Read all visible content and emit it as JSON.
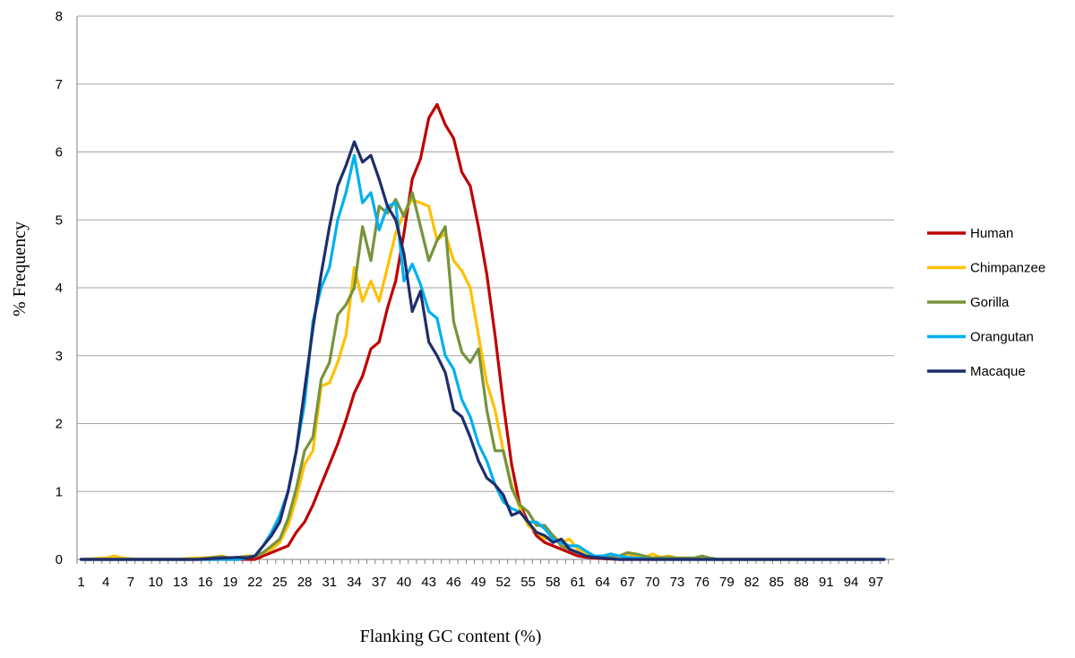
{
  "chart_data": {
    "type": "line",
    "title": "",
    "xlabel": "Flanking GC content (%)",
    "ylabel": "% Frequency",
    "xlim": [
      1,
      99
    ],
    "ylim": [
      0,
      8
    ],
    "yticks": [
      0,
      1,
      2,
      3,
      4,
      5,
      6,
      7,
      8
    ],
    "xtick_labels": [
      1,
      4,
      7,
      10,
      13,
      16,
      19,
      22,
      25,
      28,
      31,
      34,
      37,
      40,
      43,
      46,
      49,
      52,
      55,
      58,
      61,
      64,
      67,
      70,
      73,
      76,
      79,
      82,
      85,
      88,
      91,
      94,
      97
    ],
    "grid": "horizontal",
    "legend_position": "right",
    "series": [
      {
        "name": "Human",
        "color": "#c00000",
        "points": [
          [
            1,
            0
          ],
          [
            5,
            0
          ],
          [
            10,
            0
          ],
          [
            15,
            0
          ],
          [
            20,
            0
          ],
          [
            22,
            0
          ],
          [
            23,
            0.05
          ],
          [
            24,
            0.1
          ],
          [
            25,
            0.15
          ],
          [
            26,
            0.2
          ],
          [
            27,
            0.4
          ],
          [
            28,
            0.55
          ],
          [
            29,
            0.8
          ],
          [
            30,
            1.1
          ],
          [
            31,
            1.4
          ],
          [
            32,
            1.7
          ],
          [
            33,
            2.05
          ],
          [
            34,
            2.45
          ],
          [
            35,
            2.7
          ],
          [
            36,
            3.1
          ],
          [
            37,
            3.2
          ],
          [
            38,
            3.7
          ],
          [
            39,
            4.1
          ],
          [
            40,
            4.8
          ],
          [
            41,
            5.6
          ],
          [
            42,
            5.9
          ],
          [
            43,
            6.5
          ],
          [
            44,
            6.7
          ],
          [
            45,
            6.4
          ],
          [
            46,
            6.2
          ],
          [
            47,
            5.7
          ],
          [
            48,
            5.5
          ],
          [
            49,
            4.9
          ],
          [
            50,
            4.2
          ],
          [
            51,
            3.3
          ],
          [
            52,
            2.3
          ],
          [
            53,
            1.4
          ],
          [
            54,
            0.8
          ],
          [
            55,
            0.55
          ],
          [
            56,
            0.35
          ],
          [
            57,
            0.25
          ],
          [
            58,
            0.2
          ],
          [
            59,
            0.15
          ],
          [
            60,
            0.1
          ],
          [
            61,
            0.05
          ],
          [
            62,
            0.03
          ],
          [
            63,
            0.02
          ],
          [
            64,
            0.01
          ],
          [
            66,
            0
          ],
          [
            70,
            0
          ],
          [
            80,
            0
          ],
          [
            90,
            0
          ],
          [
            98,
            0
          ]
        ]
      },
      {
        "name": "Chimpanzee",
        "color": "#ffc000",
        "points": [
          [
            1,
            0
          ],
          [
            4,
            0.02
          ],
          [
            5,
            0.05
          ],
          [
            6,
            0.02
          ],
          [
            8,
            0
          ],
          [
            12,
            0
          ],
          [
            15,
            0.02
          ],
          [
            17,
            0.03
          ],
          [
            18,
            0.05
          ],
          [
            19,
            0.02
          ],
          [
            20,
            0.03
          ],
          [
            21,
            0.05
          ],
          [
            22,
            0.05
          ],
          [
            23,
            0.1
          ],
          [
            24,
            0.15
          ],
          [
            25,
            0.25
          ],
          [
            26,
            0.5
          ],
          [
            27,
            0.9
          ],
          [
            28,
            1.4
          ],
          [
            29,
            1.6
          ],
          [
            30,
            2.55
          ],
          [
            31,
            2.6
          ],
          [
            32,
            2.9
          ],
          [
            33,
            3.3
          ],
          [
            34,
            4.3
          ],
          [
            35,
            3.8
          ],
          [
            36,
            4.1
          ],
          [
            37,
            3.8
          ],
          [
            38,
            4.3
          ],
          [
            39,
            4.8
          ],
          [
            40,
            5.1
          ],
          [
            41,
            5.3
          ],
          [
            42,
            5.25
          ],
          [
            43,
            5.2
          ],
          [
            44,
            4.7
          ],
          [
            45,
            4.8
          ],
          [
            46,
            4.4
          ],
          [
            47,
            4.25
          ],
          [
            48,
            4.0
          ],
          [
            49,
            3.3
          ],
          [
            50,
            2.6
          ],
          [
            51,
            2.2
          ],
          [
            52,
            1.6
          ],
          [
            53,
            1.1
          ],
          [
            54,
            0.75
          ],
          [
            55,
            0.5
          ],
          [
            56,
            0.4
          ],
          [
            57,
            0.3
          ],
          [
            58,
            0.35
          ],
          [
            59,
            0.25
          ],
          [
            60,
            0.3
          ],
          [
            61,
            0.15
          ],
          [
            62,
            0.1
          ],
          [
            63,
            0.05
          ],
          [
            64,
            0.05
          ],
          [
            66,
            0.05
          ],
          [
            67,
            0.08
          ],
          [
            68,
            0.05
          ],
          [
            69,
            0.02
          ],
          [
            70,
            0.08
          ],
          [
            71,
            0.03
          ],
          [
            72,
            0.05
          ],
          [
            73,
            0.02
          ],
          [
            75,
            0.02
          ],
          [
            77,
            0
          ],
          [
            80,
            0
          ],
          [
            90,
            0
          ],
          [
            98,
            0
          ]
        ]
      },
      {
        "name": "Gorilla",
        "color": "#77933c",
        "points": [
          [
            1,
            0
          ],
          [
            5,
            0
          ],
          [
            10,
            0
          ],
          [
            15,
            0
          ],
          [
            17,
            0.03
          ],
          [
            18,
            0.04
          ],
          [
            19,
            0.02
          ],
          [
            20,
            0.03
          ],
          [
            21,
            0.04
          ],
          [
            22,
            0.05
          ],
          [
            23,
            0.1
          ],
          [
            24,
            0.2
          ],
          [
            25,
            0.3
          ],
          [
            26,
            0.6
          ],
          [
            27,
            1.05
          ],
          [
            28,
            1.6
          ],
          [
            29,
            1.8
          ],
          [
            30,
            2.65
          ],
          [
            31,
            2.9
          ],
          [
            32,
            3.6
          ],
          [
            33,
            3.75
          ],
          [
            34,
            4.0
          ],
          [
            35,
            4.9
          ],
          [
            36,
            4.4
          ],
          [
            37,
            5.2
          ],
          [
            38,
            5.1
          ],
          [
            39,
            5.3
          ],
          [
            40,
            5.05
          ],
          [
            41,
            5.4
          ],
          [
            42,
            4.9
          ],
          [
            43,
            4.4
          ],
          [
            44,
            4.7
          ],
          [
            45,
            4.9
          ],
          [
            46,
            3.5
          ],
          [
            47,
            3.05
          ],
          [
            48,
            2.9
          ],
          [
            49,
            3.1
          ],
          [
            50,
            2.2
          ],
          [
            51,
            1.6
          ],
          [
            52,
            1.6
          ],
          [
            53,
            1.05
          ],
          [
            54,
            0.8
          ],
          [
            55,
            0.7
          ],
          [
            56,
            0.5
          ],
          [
            57,
            0.5
          ],
          [
            58,
            0.35
          ],
          [
            59,
            0.2
          ],
          [
            60,
            0.15
          ],
          [
            61,
            0.1
          ],
          [
            62,
            0.05
          ],
          [
            63,
            0.03
          ],
          [
            64,
            0.05
          ],
          [
            65,
            0.05
          ],
          [
            66,
            0.05
          ],
          [
            67,
            0.1
          ],
          [
            68,
            0.08
          ],
          [
            69,
            0.05
          ],
          [
            70,
            0.02
          ],
          [
            72,
            0.03
          ],
          [
            73,
            0.02
          ],
          [
            75,
            0.02
          ],
          [
            76,
            0.05
          ],
          [
            77,
            0.02
          ],
          [
            78,
            0
          ],
          [
            85,
            0
          ],
          [
            98,
            0
          ]
        ]
      },
      {
        "name": "Orangutan",
        "color": "#00b0f0",
        "points": [
          [
            1,
            0
          ],
          [
            5,
            0
          ],
          [
            10,
            0
          ],
          [
            15,
            0
          ],
          [
            20,
            0
          ],
          [
            21,
            0.02
          ],
          [
            22,
            0.05
          ],
          [
            23,
            0.2
          ],
          [
            24,
            0.4
          ],
          [
            25,
            0.65
          ],
          [
            26,
            1.0
          ],
          [
            27,
            1.6
          ],
          [
            28,
            2.3
          ],
          [
            29,
            3.5
          ],
          [
            30,
            4.0
          ],
          [
            31,
            4.3
          ],
          [
            32,
            5.0
          ],
          [
            33,
            5.4
          ],
          [
            34,
            5.95
          ],
          [
            35,
            5.25
          ],
          [
            36,
            5.4
          ],
          [
            37,
            4.85
          ],
          [
            38,
            5.2
          ],
          [
            39,
            5.25
          ],
          [
            40,
            4.1
          ],
          [
            41,
            4.35
          ],
          [
            42,
            4.05
          ],
          [
            43,
            3.65
          ],
          [
            44,
            3.55
          ],
          [
            45,
            3.0
          ],
          [
            46,
            2.8
          ],
          [
            47,
            2.35
          ],
          [
            48,
            2.1
          ],
          [
            49,
            1.7
          ],
          [
            50,
            1.45
          ],
          [
            51,
            1.1
          ],
          [
            52,
            0.85
          ],
          [
            53,
            0.75
          ],
          [
            54,
            0.7
          ],
          [
            55,
            0.55
          ],
          [
            56,
            0.55
          ],
          [
            57,
            0.45
          ],
          [
            58,
            0.3
          ],
          [
            59,
            0.25
          ],
          [
            60,
            0.2
          ],
          [
            61,
            0.2
          ],
          [
            62,
            0.12
          ],
          [
            63,
            0.05
          ],
          [
            64,
            0.05
          ],
          [
            65,
            0.08
          ],
          [
            66,
            0.05
          ],
          [
            67,
            0.03
          ],
          [
            68,
            0.02
          ],
          [
            70,
            0
          ],
          [
            80,
            0
          ],
          [
            90,
            0
          ],
          [
            98,
            0
          ]
        ]
      },
      {
        "name": "Macaque",
        "color": "#1f2d6b",
        "points": [
          [
            1,
            0
          ],
          [
            5,
            0
          ],
          [
            10,
            0
          ],
          [
            15,
            0
          ],
          [
            18,
            0.02
          ],
          [
            20,
            0.03
          ],
          [
            21,
            0.02
          ],
          [
            22,
            0.05
          ],
          [
            23,
            0.2
          ],
          [
            24,
            0.35
          ],
          [
            25,
            0.55
          ],
          [
            26,
            1.0
          ],
          [
            27,
            1.6
          ],
          [
            28,
            2.5
          ],
          [
            29,
            3.4
          ],
          [
            30,
            4.2
          ],
          [
            31,
            4.9
          ],
          [
            32,
            5.5
          ],
          [
            33,
            5.8
          ],
          [
            34,
            6.15
          ],
          [
            35,
            5.85
          ],
          [
            36,
            5.95
          ],
          [
            37,
            5.6
          ],
          [
            38,
            5.2
          ],
          [
            39,
            5.0
          ],
          [
            40,
            4.5
          ],
          [
            41,
            3.65
          ],
          [
            42,
            3.95
          ],
          [
            43,
            3.2
          ],
          [
            44,
            3.0
          ],
          [
            45,
            2.75
          ],
          [
            46,
            2.2
          ],
          [
            47,
            2.1
          ],
          [
            48,
            1.8
          ],
          [
            49,
            1.45
          ],
          [
            50,
            1.2
          ],
          [
            51,
            1.1
          ],
          [
            52,
            0.95
          ],
          [
            53,
            0.65
          ],
          [
            54,
            0.7
          ],
          [
            55,
            0.55
          ],
          [
            56,
            0.4
          ],
          [
            57,
            0.35
          ],
          [
            58,
            0.25
          ],
          [
            59,
            0.3
          ],
          [
            60,
            0.15
          ],
          [
            61,
            0.1
          ],
          [
            62,
            0.05
          ],
          [
            63,
            0.03
          ],
          [
            64,
            0.02
          ],
          [
            66,
            0
          ],
          [
            70,
            0
          ],
          [
            80,
            0
          ],
          [
            90,
            0
          ],
          [
            98,
            0
          ]
        ]
      }
    ]
  }
}
